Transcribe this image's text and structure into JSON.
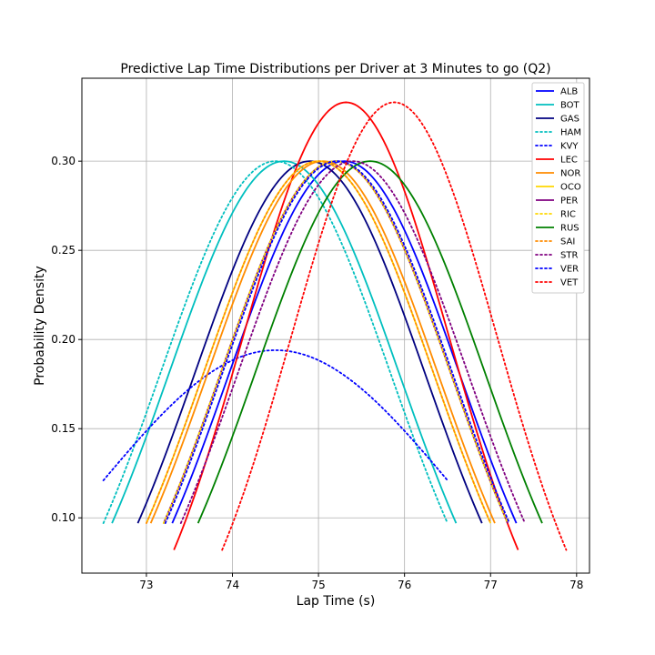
{
  "chart_data": {
    "type": "line",
    "title": "Predictive Lap Time Distributions per Driver at 3 Minutes to go (Q2)",
    "xlabel": "Lap Time (s)",
    "ylabel": "Probability Density",
    "xlim": [
      72.25,
      78.15
    ],
    "ylim": [
      0.069,
      0.3465
    ],
    "xticks": [
      73,
      74,
      75,
      76,
      77,
      78
    ],
    "yticks": [
      0.1,
      0.15,
      0.2,
      0.25,
      0.3
    ],
    "xtick_labels": [
      "73",
      "74",
      "75",
      "76",
      "77",
      "78"
    ],
    "ytick_labels": [
      "0.10",
      "0.15",
      "0.20",
      "0.25",
      "0.30"
    ],
    "grid": true,
    "legend_position": "top-right",
    "series": [
      {
        "name": "ALB",
        "color": "#0000ff",
        "style": "solid",
        "mean": 75.3,
        "peak": 0.3,
        "x_start": 73.3,
        "x_end": 77.3,
        "y_end": 0.097
      },
      {
        "name": "BOT",
        "color": "#00bfbf",
        "style": "solid",
        "mean": 74.6,
        "peak": 0.3,
        "x_start": 72.6,
        "x_end": 76.6,
        "y_end": 0.097
      },
      {
        "name": "GAS",
        "color": "#000080",
        "style": "solid",
        "mean": 74.9,
        "peak": 0.3,
        "x_start": 72.9,
        "x_end": 76.9,
        "y_end": 0.097
      },
      {
        "name": "HAM",
        "color": "#00bfbf",
        "style": "dotted",
        "mean": 74.5,
        "peak": 0.3,
        "x_start": 72.5,
        "x_end": 76.5,
        "y_end": 0.097
      },
      {
        "name": "KVY",
        "color": "#0000ff",
        "style": "dotted",
        "mean": 74.5,
        "peak": 0.194,
        "x_start": 72.5,
        "x_end": 76.5,
        "y_end": 0.121
      },
      {
        "name": "LEC",
        "color": "#ff0000",
        "style": "solid",
        "mean": 75.32,
        "peak": 0.333,
        "x_start": 73.32,
        "x_end": 77.32,
        "y_end": 0.082
      },
      {
        "name": "NOR",
        "color": "#ff8c00",
        "style": "solid",
        "mean": 75.05,
        "peak": 0.3,
        "x_start": 73.05,
        "x_end": 77.05,
        "y_end": 0.097
      },
      {
        "name": "OCO",
        "color": "#ffd700",
        "style": "solid",
        "mean": 75.0,
        "peak": 0.3,
        "x_start": 73.0,
        "x_end": 77.0,
        "y_end": 0.097
      },
      {
        "name": "PER",
        "color": "#800080",
        "style": "solid",
        "mean": 75.2,
        "peak": 0.3,
        "x_start": 73.2,
        "x_end": 77.2,
        "y_end": 0.097
      },
      {
        "name": "RIC",
        "color": "#ffd700",
        "style": "dotted",
        "mean": 75.2,
        "peak": 0.3,
        "x_start": 73.2,
        "x_end": 77.2,
        "y_end": 0.097
      },
      {
        "name": "RUS",
        "color": "#008000",
        "style": "solid",
        "mean": 75.6,
        "peak": 0.3,
        "x_start": 73.6,
        "x_end": 77.6,
        "y_end": 0.097
      },
      {
        "name": "SAI",
        "color": "#ff8c00",
        "style": "dotted",
        "mean": 75.0,
        "peak": 0.3,
        "x_start": 73.0,
        "x_end": 77.0,
        "y_end": 0.097
      },
      {
        "name": "STR",
        "color": "#800080",
        "style": "dotted",
        "mean": 75.4,
        "peak": 0.3,
        "x_start": 73.4,
        "x_end": 77.4,
        "y_end": 0.097
      },
      {
        "name": "VER",
        "color": "#0000ff",
        "style": "dotted",
        "mean": 75.22,
        "peak": 0.3,
        "x_start": 73.22,
        "x_end": 77.22,
        "y_end": 0.097
      },
      {
        "name": "VET",
        "color": "#ff0000",
        "style": "dotted",
        "mean": 75.88,
        "peak": 0.333,
        "x_start": 73.88,
        "x_end": 77.88,
        "y_end": 0.082
      }
    ]
  }
}
